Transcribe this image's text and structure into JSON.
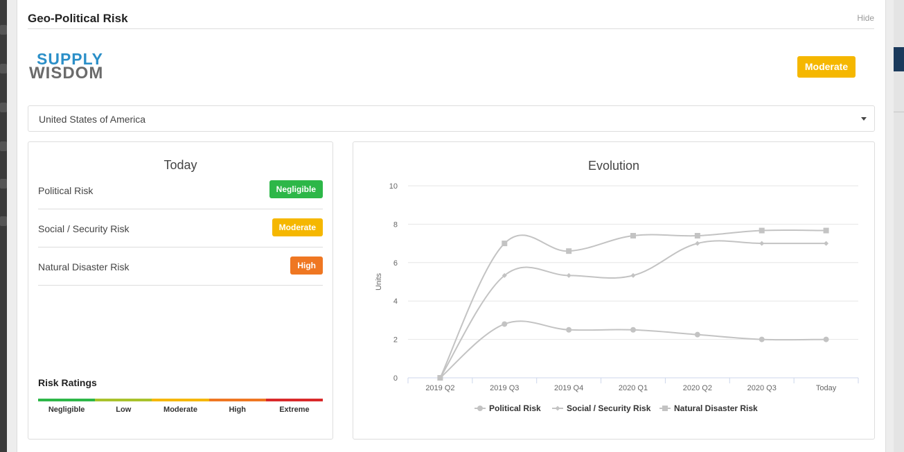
{
  "header": {
    "title": "Geo-Political Risk",
    "hide_label": "Hide"
  },
  "logo": {
    "line1": "SUPPLY",
    "line2": "WISDOM"
  },
  "overall_rating": {
    "label": "Moderate",
    "color": "#f5b700"
  },
  "country_select": {
    "value": "United States of America"
  },
  "today": {
    "title": "Today",
    "risks": [
      {
        "label": "Political Risk",
        "rating": "Negligible",
        "color": "#2db748"
      },
      {
        "label": "Social / Security Risk",
        "rating": "Moderate",
        "color": "#f5b700"
      },
      {
        "label": "Natural Disaster Risk",
        "rating": "High",
        "color": "#ef7722"
      }
    ],
    "ratings_title": "Risk Ratings",
    "scale": [
      {
        "label": "Negligible",
        "color": "#2db748"
      },
      {
        "label": "Low",
        "color": "#a8c22b"
      },
      {
        "label": "Moderate",
        "color": "#f5b700"
      },
      {
        "label": "High",
        "color": "#ef7722"
      },
      {
        "label": "Extreme",
        "color": "#d9292a"
      }
    ]
  },
  "evolution": {
    "title": "Evolution",
    "chart_data": {
      "type": "line",
      "title": "Evolution",
      "xlabel": "",
      "ylabel": "Units",
      "categories": [
        "2019 Q2",
        "2019 Q3",
        "2019 Q4",
        "2020 Q1",
        "2020 Q2",
        "2020 Q3",
        "Today"
      ],
      "ylim": [
        0,
        10
      ],
      "yticks": [
        0,
        2,
        4,
        6,
        8,
        10
      ],
      "grid": true,
      "legend_position": "bottom",
      "series": [
        {
          "name": "Political Risk",
          "marker": "circle",
          "values": [
            0,
            2.8,
            2.5,
            2.5,
            2.25,
            2.0,
            2.0
          ]
        },
        {
          "name": "Social / Security Risk",
          "marker": "diamond",
          "values": [
            0,
            5.33,
            5.33,
            5.33,
            7.0,
            7.0,
            7.0
          ]
        },
        {
          "name": "Natural Disaster Risk",
          "marker": "square",
          "values": [
            0,
            7.0,
            6.6,
            7.4,
            7.4,
            7.67,
            7.67
          ]
        }
      ],
      "line_color": "#c3c3c3"
    }
  }
}
